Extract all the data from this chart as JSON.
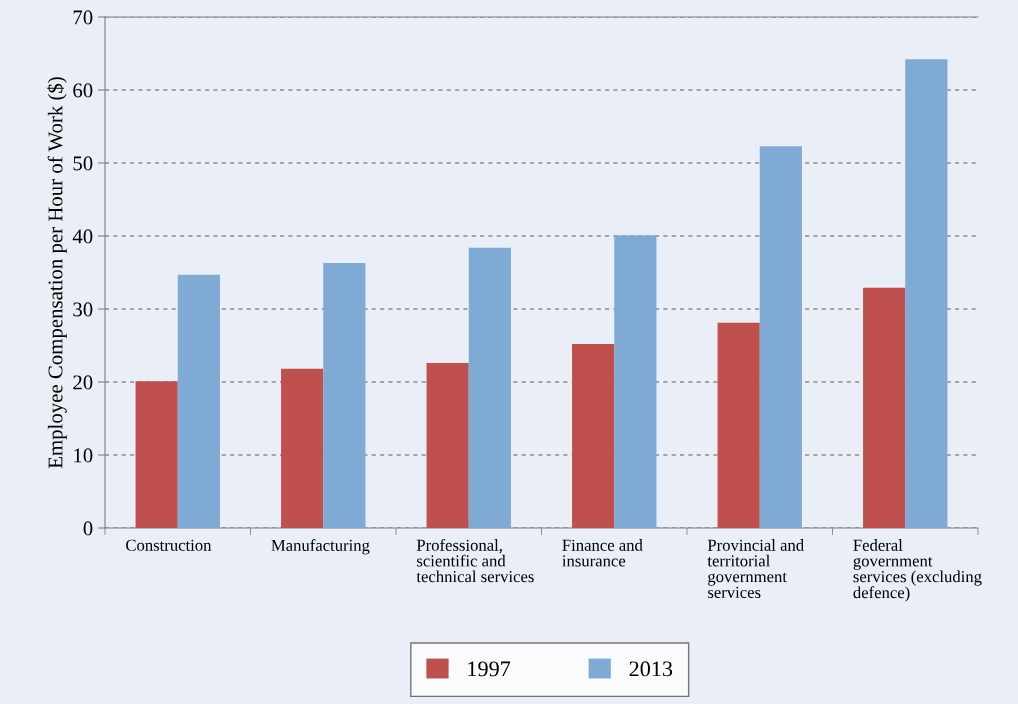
{
  "chart_data": {
    "type": "bar",
    "categories": [
      "Construction",
      "Manufacturing",
      "Professional,\nscientific and\ntechnical services",
      "Finance and\ninsurance",
      "Provincial and\nterritorial\ngovernment\nservices",
      "Federal\ngovernment\nservices (excluding\ndefence)"
    ],
    "series": [
      {
        "name": "1997",
        "color": "#c0504d",
        "values": [
          20.1,
          21.8,
          22.6,
          25.2,
          28.1,
          32.9
        ]
      },
      {
        "name": "2013",
        "color": "#7faad6",
        "values": [
          34.7,
          36.3,
          38.4,
          40.1,
          52.3,
          64.2
        ]
      }
    ],
    "ylabel": "Employee Compensation per Hour of Work ($)",
    "ylim": [
      0,
      70
    ],
    "yticks": [
      0,
      10,
      20,
      30,
      40,
      50,
      60,
      70
    ],
    "grid": "y",
    "legend": "bottom"
  }
}
